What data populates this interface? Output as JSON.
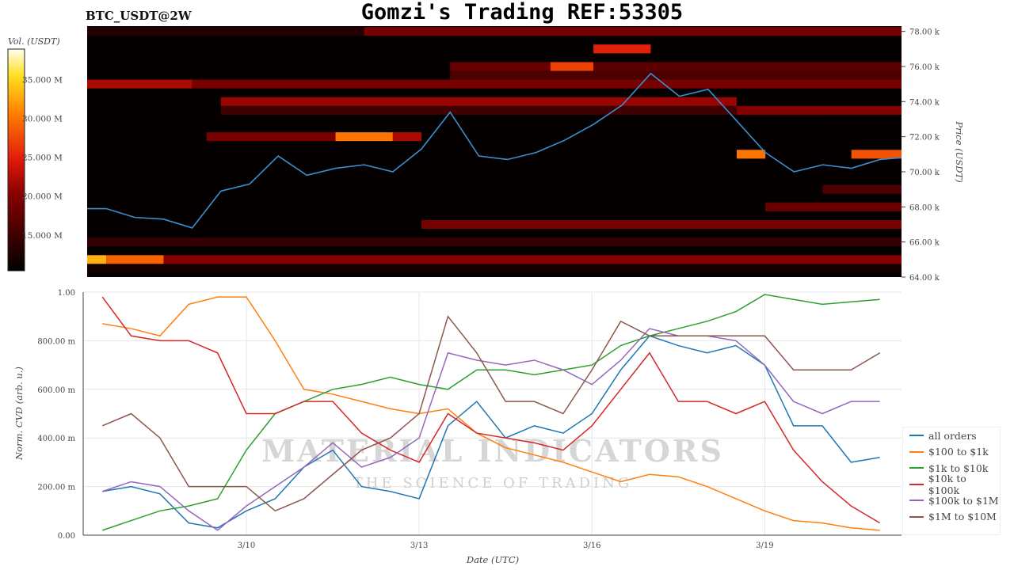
{
  "title": "Gomzi's Trading REF:53305",
  "subtitle": "BTC_USDT@2W",
  "watermark": {
    "line1": "MATERIAL INDICATORS",
    "line2": "THE SCIENCE OF TRADING"
  },
  "colors": {
    "all orders": "#1f77b4",
    "$100 to $1k": "#ff7f0e",
    "$1k to $10k": "#2ca02c",
    "$10k to $100k": "#d62728",
    "$100k to $1M": "#9467bd",
    "$1M to $10M": "#8c564b"
  },
  "chart_data": [
    {
      "type": "heatmap",
      "colorscale": "hot",
      "colorbar": {
        "title": "Vol. (USDT)",
        "range": [
          10.4,
          38.9
        ],
        "unit": "M",
        "ticks": [
          15,
          20,
          25,
          30,
          35
        ],
        "tick_labels": [
          "15.000 M",
          "20.000 M",
          "25.000 M",
          "30.000 M",
          "35.000 M"
        ]
      },
      "ylabel": "Price (USDT)",
      "ylim": [
        64,
        78.3
      ],
      "yticks": [
        64,
        66,
        68,
        70,
        72,
        74,
        76,
        78
      ],
      "ytick_labels": [
        "64.00 k",
        "66.00 k",
        "68.00 k",
        "70.00 k",
        "72.00 k",
        "74.00 k",
        "76.00 k",
        "78.00 k"
      ],
      "xlim": [
        "2024-03-07T04:00",
        "2024-03-21T09:00"
      ],
      "bands": [
        {
          "price": 78.0,
          "from": "2024-03-07T04:00",
          "to": "2024-03-12T00:00",
          "vol": 13
        },
        {
          "price": 78.0,
          "from": "2024-03-12T00:00",
          "to": "2024-03-21T09:00",
          "vol": 19
        },
        {
          "price": 77.0,
          "from": "2024-03-16T00:00",
          "to": "2024-03-17T00:00",
          "vol": 25
        },
        {
          "price": 76.0,
          "from": "2024-03-13T12:00",
          "to": "2024-03-15T06:00",
          "vol": 18
        },
        {
          "price": 76.0,
          "from": "2024-03-15T06:00",
          "to": "2024-03-16T00:00",
          "vol": 27
        },
        {
          "price": 76.0,
          "from": "2024-03-16T00:00",
          "to": "2024-03-21T09:00",
          "vol": 17
        },
        {
          "price": 75.5,
          "from": "2024-03-13T12:00",
          "to": "2024-03-21T09:00",
          "vol": 16
        },
        {
          "price": 75.0,
          "from": "2024-03-07T04:00",
          "to": "2024-03-09T00:00",
          "vol": 22
        },
        {
          "price": 75.0,
          "from": "2024-03-09T00:00",
          "to": "2024-03-21T09:00",
          "vol": 19
        },
        {
          "price": 74.0,
          "from": "2024-03-09T12:00",
          "to": "2024-03-18T12:00",
          "vol": 21
        },
        {
          "price": 73.5,
          "from": "2024-03-09T12:00",
          "to": "2024-03-20T00:00",
          "vol": 15
        },
        {
          "price": 73.5,
          "from": "2024-03-18T12:00",
          "to": "2024-03-21T09:00",
          "vol": 20
        },
        {
          "price": 72.0,
          "from": "2024-03-09T06:00",
          "to": "2024-03-11T12:00",
          "vol": 19
        },
        {
          "price": 72.0,
          "from": "2024-03-11T12:00",
          "to": "2024-03-12T12:00",
          "vol": 30
        },
        {
          "price": 72.0,
          "from": "2024-03-12T12:00",
          "to": "2024-03-13T00:00",
          "vol": 22
        },
        {
          "price": 71.0,
          "from": "2024-03-18T12:00",
          "to": "2024-03-19T00:00",
          "vol": 30
        },
        {
          "price": 71.0,
          "from": "2024-03-20T12:00",
          "to": "2024-03-21T09:00",
          "vol": 28
        },
        {
          "price": 69.0,
          "from": "2024-03-20T00:00",
          "to": "2024-03-21T09:00",
          "vol": 16
        },
        {
          "price": 68.0,
          "from": "2024-03-19T00:00",
          "to": "2024-03-21T09:00",
          "vol": 18
        },
        {
          "price": 67.0,
          "from": "2024-03-13T00:00",
          "to": "2024-03-21T09:00",
          "vol": 19
        },
        {
          "price": 66.0,
          "from": "2024-03-07T04:00",
          "to": "2024-03-21T09:00",
          "vol": 14
        },
        {
          "price": 65.0,
          "from": "2024-03-07T04:00",
          "to": "2024-03-07T12:00",
          "vol": 33
        },
        {
          "price": 65.0,
          "from": "2024-03-07T12:00",
          "to": "2024-03-08T12:00",
          "vol": 29
        },
        {
          "price": 65.0,
          "from": "2024-03-08T12:00",
          "to": "2024-03-21T09:00",
          "vol": 20
        },
        {
          "price": 64.5,
          "from": "2024-03-07T04:00",
          "to": "2024-03-21T09:00",
          "vol": 12
        }
      ],
      "price_line": {
        "x": [
          "2024-03-07T04:00",
          "2024-03-07T12:00",
          "2024-03-08T00:00",
          "2024-03-08T12:00",
          "2024-03-09T00:00",
          "2024-03-09T12:00",
          "2024-03-10T00:00",
          "2024-03-10T12:00",
          "2024-03-11T00:00",
          "2024-03-11T12:00",
          "2024-03-12T00:00",
          "2024-03-12T12:00",
          "2024-03-13T00:00",
          "2024-03-13T12:00",
          "2024-03-14T00:00",
          "2024-03-14T12:00",
          "2024-03-15T00:00",
          "2024-03-15T12:00",
          "2024-03-16T00:00",
          "2024-03-16T12:00",
          "2024-03-17T00:00",
          "2024-03-17T12:00",
          "2024-03-18T00:00",
          "2024-03-18T12:00",
          "2024-03-19T00:00",
          "2024-03-19T12:00",
          "2024-03-20T00:00",
          "2024-03-20T12:00",
          "2024-03-21T00:00",
          "2024-03-21T09:00"
        ],
        "values": [
          67.9,
          67.9,
          67.4,
          67.3,
          66.8,
          68.9,
          69.3,
          70.9,
          69.8,
          70.2,
          70.4,
          70.0,
          71.3,
          73.4,
          70.9,
          70.7,
          71.1,
          71.8,
          72.7,
          73.8,
          75.6,
          74.3,
          74.7,
          72.9,
          71.1,
          70.0,
          70.4,
          70.2,
          70.7,
          70.8
        ]
      }
    },
    {
      "type": "line",
      "xlabel": "Date (UTC)",
      "ylabel": "Norm. CVD (arb. u.)",
      "ylim": [
        0,
        1
      ],
      "yticks": [
        0,
        0.2,
        0.4,
        0.6,
        0.8,
        1.0
      ],
      "ytick_labels": [
        "0.00",
        "200.00 m",
        "400.00 m",
        "600.00 m",
        "800.00 m",
        "1.00"
      ],
      "xlim": [
        "2024-03-07T04:00",
        "2024-03-21T09:00"
      ],
      "xticks": [
        "2024-03-10T00:00",
        "2024-03-13T00:00",
        "2024-03-16T00:00",
        "2024-03-19T00:00"
      ],
      "xtick_labels": [
        "3/10",
        "3/13",
        "3/16",
        "3/19"
      ],
      "grid": true,
      "legend": "right",
      "x": [
        "2024-03-07T12:00",
        "2024-03-08T00:00",
        "2024-03-08T12:00",
        "2024-03-09T00:00",
        "2024-03-09T12:00",
        "2024-03-10T00:00",
        "2024-03-10T12:00",
        "2024-03-11T00:00",
        "2024-03-11T12:00",
        "2024-03-12T00:00",
        "2024-03-12T12:00",
        "2024-03-13T00:00",
        "2024-03-13T12:00",
        "2024-03-14T00:00",
        "2024-03-14T12:00",
        "2024-03-15T00:00",
        "2024-03-15T12:00",
        "2024-03-16T00:00",
        "2024-03-16T12:00",
        "2024-03-17T00:00",
        "2024-03-17T12:00",
        "2024-03-18T00:00",
        "2024-03-18T12:00",
        "2024-03-19T00:00",
        "2024-03-19T12:00",
        "2024-03-20T00:00",
        "2024-03-20T12:00",
        "2024-03-21T00:00"
      ],
      "series": [
        {
          "name": "all orders",
          "values": [
            0.18,
            0.2,
            0.17,
            0.05,
            0.03,
            0.1,
            0.15,
            0.28,
            0.35,
            0.2,
            0.18,
            0.15,
            0.45,
            0.55,
            0.4,
            0.45,
            0.42,
            0.5,
            0.68,
            0.82,
            0.78,
            0.75,
            0.78,
            0.7,
            0.45,
            0.45,
            0.3,
            0.32
          ]
        },
        {
          "name": "$100 to $1k",
          "values": [
            0.87,
            0.85,
            0.82,
            0.95,
            0.98,
            0.98,
            0.8,
            0.6,
            0.58,
            0.55,
            0.52,
            0.5,
            0.52,
            0.42,
            0.36,
            0.33,
            0.3,
            0.26,
            0.22,
            0.25,
            0.24,
            0.2,
            0.15,
            0.1,
            0.06,
            0.05,
            0.03,
            0.02
          ]
        },
        {
          "name": "$1k to $10k",
          "values": [
            0.02,
            0.06,
            0.1,
            0.12,
            0.15,
            0.35,
            0.5,
            0.55,
            0.6,
            0.62,
            0.65,
            0.62,
            0.6,
            0.68,
            0.68,
            0.66,
            0.68,
            0.7,
            0.78,
            0.82,
            0.85,
            0.88,
            0.92,
            0.99,
            0.97,
            0.95,
            0.96,
            0.97
          ]
        },
        {
          "name": "$10k to $100k",
          "values": [
            0.98,
            0.82,
            0.8,
            0.8,
            0.75,
            0.5,
            0.5,
            0.55,
            0.55,
            0.42,
            0.35,
            0.3,
            0.5,
            0.42,
            0.4,
            0.38,
            0.35,
            0.45,
            0.6,
            0.75,
            0.55,
            0.55,
            0.5,
            0.55,
            0.35,
            0.22,
            0.12,
            0.05
          ]
        },
        {
          "name": "$100k to $1M",
          "values": [
            0.18,
            0.22,
            0.2,
            0.1,
            0.02,
            0.12,
            0.2,
            0.28,
            0.38,
            0.28,
            0.32,
            0.4,
            0.75,
            0.72,
            0.7,
            0.72,
            0.68,
            0.62,
            0.72,
            0.85,
            0.82,
            0.82,
            0.8,
            0.7,
            0.55,
            0.5,
            0.55,
            0.55
          ]
        },
        {
          "name": "$1M to $10M",
          "values": [
            0.45,
            0.5,
            0.4,
            0.2,
            0.2,
            0.2,
            0.1,
            0.15,
            0.25,
            0.35,
            0.4,
            0.5,
            0.9,
            0.75,
            0.55,
            0.55,
            0.5,
            0.68,
            0.88,
            0.82,
            0.82,
            0.82,
            0.82,
            0.82,
            0.68,
            0.68,
            0.68,
            0.75
          ]
        }
      ]
    }
  ]
}
